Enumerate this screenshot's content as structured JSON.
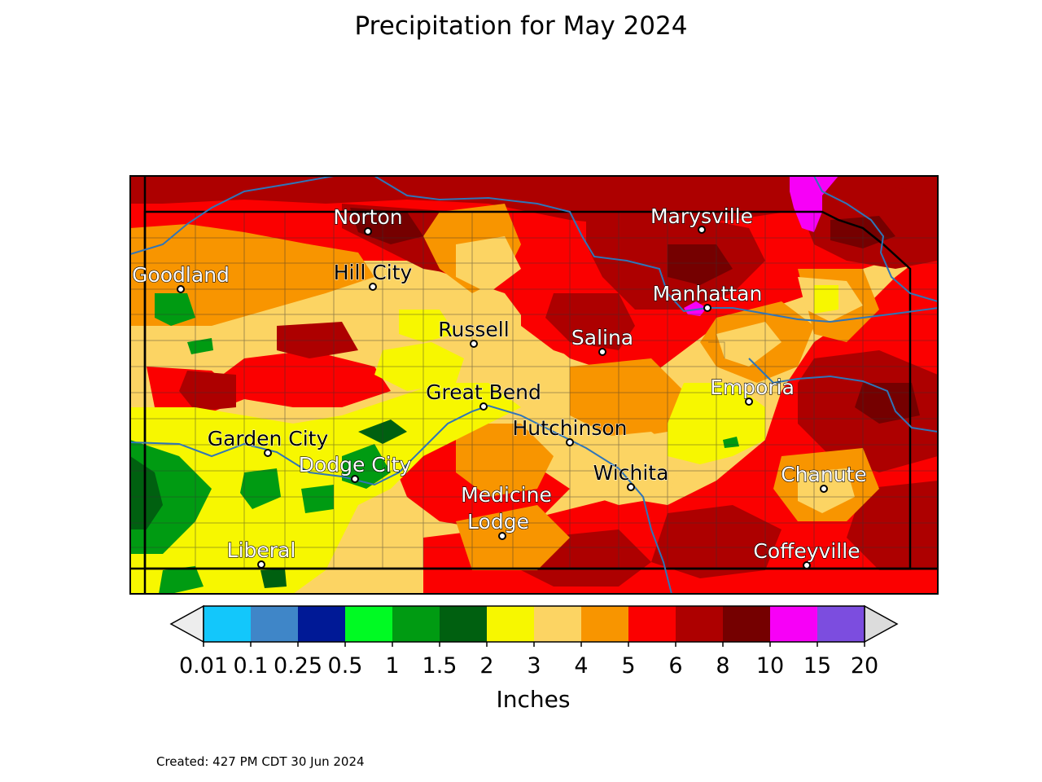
{
  "title": "Precipitation for May 2024",
  "footer": "Created: 427 PM CDT 30 Jun 2024",
  "colorbar": {
    "label": "Inches",
    "ticks": [
      "0.01",
      "0.1",
      "0.25",
      "0.5",
      "1",
      "1.5",
      "2",
      "3",
      "4",
      "5",
      "6",
      "8",
      "10",
      "15",
      "20"
    ],
    "colors": [
      "#13c7fb",
      "#3f86c8",
      "#001996",
      "#00fa23",
      "#009b12",
      "#006010",
      "#f7f700",
      "#fcd463",
      "#f89500",
      "#fb0000",
      "#ad0000",
      "#750000",
      "#f700f7",
      "#7c4ddf"
    ],
    "under_color": "#ededed",
    "over_color": "#dcdcdc"
  },
  "map": {
    "region": "Kansas",
    "colors": {
      "river": "#2f75b8",
      "frame": "#000000",
      "county_line": "#333333"
    },
    "cities": [
      {
        "name": "Norton",
        "label_color": "white"
      },
      {
        "name": "Marysville",
        "label_color": "white"
      },
      {
        "name": "Goodland",
        "label_color": "white"
      },
      {
        "name": "Hill City",
        "label_color": "black"
      },
      {
        "name": "Manhattan",
        "label_color": "white"
      },
      {
        "name": "Russell",
        "label_color": "black"
      },
      {
        "name": "Salina",
        "label_color": "white"
      },
      {
        "name": "Great Bend",
        "label_color": "black"
      },
      {
        "name": "Emporia",
        "label_color": "white"
      },
      {
        "name": "Hutchinson",
        "label_color": "black"
      },
      {
        "name": "Garden City",
        "label_color": "black"
      },
      {
        "name": "Dodge City",
        "label_color": "white"
      },
      {
        "name": "Wichita",
        "label_color": "black"
      },
      {
        "name": "Chanute",
        "label_color": "white"
      },
      {
        "name": "Medicine",
        "label_color": "white"
      },
      {
        "name": "Lodge",
        "label_color": "white"
      },
      {
        "name": "Liberal",
        "label_color": "white"
      },
      {
        "name": "Coffeyville",
        "label_color": "white"
      }
    ]
  }
}
